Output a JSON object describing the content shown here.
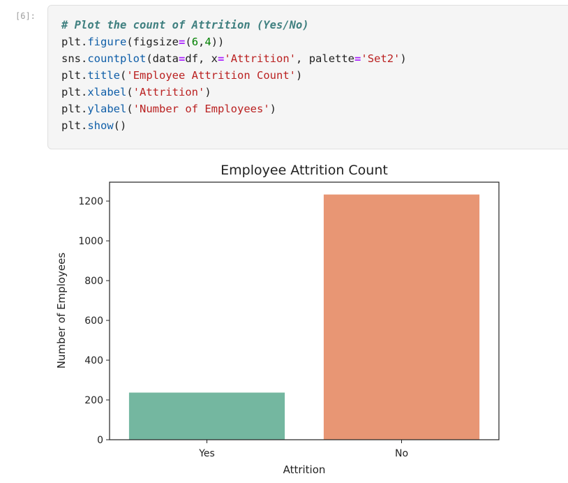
{
  "cell": {
    "prompt": "[6]:",
    "lines": [
      [
        {
          "t": "# Plot the count of Attrition (Yes/No)",
          "c": "comment"
        }
      ],
      [
        {
          "t": "plt",
          "c": "pun"
        },
        {
          "t": ".",
          "c": "pun"
        },
        {
          "t": "figure",
          "c": "attr"
        },
        {
          "t": "(figsize",
          "c": "pun"
        },
        {
          "t": "=",
          "c": "op"
        },
        {
          "t": "(",
          "c": "pun"
        },
        {
          "t": "6",
          "c": "num"
        },
        {
          "t": ",",
          "c": "pun"
        },
        {
          "t": "4",
          "c": "num"
        },
        {
          "t": "))",
          "c": "pun"
        }
      ],
      [
        {
          "t": "sns",
          "c": "pun"
        },
        {
          "t": ".",
          "c": "pun"
        },
        {
          "t": "countplot",
          "c": "attr"
        },
        {
          "t": "(data",
          "c": "pun"
        },
        {
          "t": "=",
          "c": "op"
        },
        {
          "t": "df, x",
          "c": "pun"
        },
        {
          "t": "=",
          "c": "op"
        },
        {
          "t": "'Attrition'",
          "c": "str"
        },
        {
          "t": ", palette",
          "c": "pun"
        },
        {
          "t": "=",
          "c": "op"
        },
        {
          "t": "'Set2'",
          "c": "str"
        },
        {
          "t": ")",
          "c": "pun"
        }
      ],
      [
        {
          "t": "plt",
          "c": "pun"
        },
        {
          "t": ".",
          "c": "pun"
        },
        {
          "t": "title",
          "c": "attr"
        },
        {
          "t": "(",
          "c": "pun"
        },
        {
          "t": "'Employee Attrition Count'",
          "c": "str"
        },
        {
          "t": ")",
          "c": "pun"
        }
      ],
      [
        {
          "t": "plt",
          "c": "pun"
        },
        {
          "t": ".",
          "c": "pun"
        },
        {
          "t": "xlabel",
          "c": "attr"
        },
        {
          "t": "(",
          "c": "pun"
        },
        {
          "t": "'Attrition'",
          "c": "str"
        },
        {
          "t": ")",
          "c": "pun"
        }
      ],
      [
        {
          "t": "plt",
          "c": "pun"
        },
        {
          "t": ".",
          "c": "pun"
        },
        {
          "t": "ylabel",
          "c": "attr"
        },
        {
          "t": "(",
          "c": "pun"
        },
        {
          "t": "'Number of Employees'",
          "c": "str"
        },
        {
          "t": ")",
          "c": "pun"
        }
      ],
      [
        {
          "t": "plt",
          "c": "pun"
        },
        {
          "t": ".",
          "c": "pun"
        },
        {
          "t": "show",
          "c": "attr"
        },
        {
          "t": "()",
          "c": "pun"
        }
      ]
    ]
  },
  "colors": {
    "comment": "#408080",
    "attr": "#0f5ea8",
    "op": "#aa22ff",
    "num": "#008000",
    "str": "#ba2121",
    "yes_bar": "#74b7a0",
    "no_bar": "#e89674"
  },
  "chart_data": {
    "type": "bar",
    "title": "Employee Attrition Count",
    "xlabel": "Attrition",
    "ylabel": "Number of Employees",
    "categories": [
      "Yes",
      "No"
    ],
    "values": [
      237,
      1233
    ],
    "ylim": [
      0,
      1295
    ],
    "yticks": [
      0,
      200,
      400,
      600,
      800,
      1000,
      1200
    ],
    "grid": false
  }
}
